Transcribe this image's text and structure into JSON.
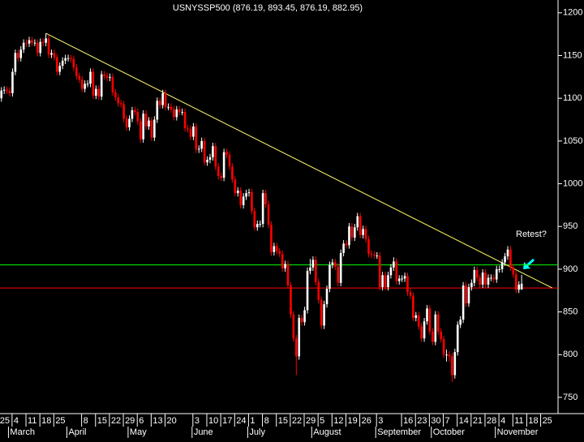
{
  "chart_data": {
    "type": "candlestick",
    "title": "USNYSSP500 (876.19, 893.45, 876.19, 882.95)",
    "annotation": "Retest?",
    "annotation_color": "#ff00ff",
    "up_color": "#ffffff",
    "down_color": "#ff0000",
    "ylim": [
      731,
      1215
    ],
    "yticks": [
      750,
      800,
      850,
      900,
      950,
      1000,
      1050,
      1100,
      1150,
      1200
    ],
    "hlines": [
      {
        "value": 905,
        "color": "#00ff00"
      },
      {
        "value": 878,
        "color": "#ff0000"
      }
    ],
    "trendline": {
      "x": [
        16,
        198
      ],
      "y": [
        1176,
        878
      ],
      "color": "#ffff66"
    },
    "categories": [
      "25",
      null,
      null,
      null,
      null,
      "4",
      null,
      null,
      null,
      null,
      "11",
      null,
      null,
      null,
      null,
      "18",
      null,
      null,
      null,
      null,
      "25",
      null,
      null,
      null,
      null,
      null,
      null,
      null,
      null,
      null,
      "8",
      null,
      null,
      null,
      null,
      "15",
      null,
      null,
      null,
      null,
      "22",
      null,
      null,
      null,
      null,
      "29",
      null,
      null,
      null,
      null,
      "6",
      null,
      null,
      null,
      null,
      "13",
      null,
      null,
      null,
      null,
      "20",
      null,
      null,
      null,
      null,
      null,
      null,
      null,
      null,
      null,
      "3",
      null,
      null,
      null,
      null,
      "10",
      null,
      null,
      null,
      null,
      "17",
      null,
      null,
      null,
      null,
      "24",
      null,
      null,
      null,
      null,
      "1",
      null,
      null,
      null,
      null,
      "8",
      null,
      null,
      null,
      null,
      "15",
      null,
      null,
      null,
      null,
      "22",
      null,
      null,
      null,
      null,
      "29",
      null,
      null,
      null,
      null,
      "5",
      null,
      null,
      null,
      null,
      "12",
      null,
      null,
      null,
      null,
      "19",
      null,
      null,
      null,
      null,
      "26",
      null,
      null,
      null,
      null,
      null,
      "3",
      null,
      null,
      null,
      null,
      null,
      null,
      null,
      null,
      "16",
      null,
      null,
      null,
      null,
      "23",
      null,
      null,
      null,
      null,
      "30",
      null,
      null,
      null,
      null,
      "7",
      null,
      null,
      null,
      null,
      "14",
      null,
      null,
      null,
      null,
      "21",
      null,
      null,
      null,
      null,
      "28",
      null,
      null,
      null,
      null,
      "4",
      null,
      null,
      null,
      null,
      "11",
      null,
      null,
      null,
      null,
      "18",
      null,
      null,
      null,
      null,
      "25",
      null,
      null,
      null,
      null
    ],
    "months": [
      null,
      null,
      null,
      null,
      "March",
      null,
      null,
      null,
      null,
      null,
      null,
      null,
      null,
      null,
      null,
      null,
      null,
      null,
      null,
      null,
      null,
      null,
      null,
      null,
      null,
      "April",
      null,
      null,
      null,
      null,
      null,
      null,
      null,
      null,
      null,
      null,
      null,
      null,
      null,
      null,
      null,
      null,
      null,
      null,
      null,
      null,
      null,
      "May",
      null,
      null,
      null,
      null,
      null,
      null,
      null,
      null,
      null,
      null,
      null,
      null,
      null,
      null,
      null,
      null,
      null,
      null,
      null,
      null,
      null,
      null,
      "June",
      null,
      null,
      null,
      null,
      null,
      null,
      null,
      null,
      null,
      null,
      null,
      null,
      null,
      null,
      null,
      null,
      null,
      null,
      null,
      "July",
      null,
      null,
      null,
      null,
      null,
      null,
      null,
      null,
      null,
      null,
      null,
      null,
      null,
      null,
      null,
      null,
      null,
      null,
      null,
      null,
      null,
      null,
      "August",
      null,
      null,
      null,
      null,
      null,
      null,
      null,
      null,
      null,
      null,
      null,
      null,
      null,
      null,
      null,
      null,
      null,
      null,
      null,
      null,
      null,
      null,
      "September",
      null,
      null,
      null,
      null,
      null,
      null,
      null,
      null,
      null,
      null,
      null,
      null,
      null,
      null,
      null,
      null,
      null,
      null,
      null,
      "October",
      null,
      null,
      null,
      null,
      null,
      null,
      null,
      null,
      null,
      null,
      null,
      null,
      null,
      null,
      null,
      null,
      null,
      null,
      null,
      null,
      null,
      null,
      "November",
      null,
      null,
      null,
      null,
      null,
      null,
      null,
      null,
      null,
      null,
      null,
      null,
      null,
      null,
      null,
      null,
      null,
      null,
      null,
      null
    ],
    "open": [
      1100,
      1109,
      1110,
      1109,
      1106,
      1131,
      1153,
      1147,
      1157,
      1165,
      1164,
      1168,
      1165,
      1165,
      1153,
      1166,
      1165,
      1170,
      1151,
      1153,
      1148,
      1131,
      1138,
      1144,
      1147,
      1147,
      1146,
      1136,
      1126,
      1122,
      1111,
      1117,
      1117,
      1131,
      1103,
      1111,
      1102,
      1128,
      1126,
      1124,
      1125,
      1107,
      1101,
      1094,
      1093,
      1076,
      1066,
      1076,
      1086,
      1084,
      1073,
      1052,
      1082,
      1067,
      1074,
      1054,
      1075,
      1097,
      1092,
      1106,
      1090,
      1090,
      1087,
      1078,
      1087,
      1084,
      1084,
      1065,
      1064,
      1055,
      1067,
      1040,
      1041,
      1050,
      1025,
      1028,
      1031,
      1044,
      1020,
      1009,
      1007,
      1037,
      1034,
      1020,
      1005,
      989,
      992,
      975,
      985,
      989,
      990,
      968,
      949,
      953,
      953,
      989,
      976,
      952,
      920,
      927,
      921,
      918,
      901,
      906,
      881,
      847,
      819,
      798,
      843,
      838,
      852,
      898,
      902,
      911,
      885,
      864,
      834,
      859,
      877,
      905,
      908,
      903,
      884,
      919,
      930,
      928,
      950,
      937,
      949,
      962,
      940,
      947,
      935,
      918,
      917,
      916,
      916,
      879,
      893,
      879,
      893,
      902,
      909,
      886,
      889,
      889,
      892,
      873,
      869,
      843,
      846,
      833,
      819,
      839,
      854,
      827,
      815,
      847,
      827,
      818,
      800,
      800,
      798,
      776,
      803,
      835,
      841,
      881,
      860,
      879,
      884,
      899,
      890,
      882,
      896,
      882,
      890,
      890,
      888,
      900,
      900,
      908,
      915,
      923,
      902,
      894,
      876,
      876.19,
      null,
      null,
      null,
      null,
      null,
      null,
      null,
      null,
      null,
      null,
      null,
      null
    ],
    "high": [
      1113,
      1114,
      1114,
      1113,
      1135,
      1157,
      1157,
      1161,
      1169,
      1169,
      1172,
      1172,
      1169,
      1169,
      1170,
      1170,
      1176,
      1174,
      1157,
      1157,
      1152,
      1142,
      1148,
      1151,
      1151,
      1151,
      1150,
      1140,
      1130,
      1126,
      1121,
      1121,
      1135,
      1135,
      1115,
      1115,
      1132,
      1132,
      1130,
      1129,
      1129,
      1111,
      1105,
      1098,
      1097,
      1080,
      1080,
      1090,
      1090,
      1088,
      1077,
      1086,
      1086,
      1078,
      1078,
      1079,
      1101,
      1101,
      1110,
      1110,
      1094,
      1094,
      1091,
      1091,
      1091,
      1088,
      1088,
      1069,
      1068,
      1071,
      1071,
      1045,
      1054,
      1054,
      1032,
      1035,
      1048,
      1048,
      1024,
      1013,
      1041,
      1041,
      1038,
      1024,
      1009,
      996,
      996,
      989,
      993,
      994,
      994,
      972,
      957,
      957,
      993,
      993,
      980,
      956,
      931,
      931,
      925,
      922,
      910,
      910,
      885,
      851,
      823,
      847,
      847,
      856,
      902,
      912,
      915,
      915,
      889,
      868,
      863,
      881,
      909,
      912,
      912,
      907,
      923,
      934,
      934,
      954,
      954,
      953,
      966,
      966,
      951,
      951,
      939,
      922,
      921,
      920,
      920,
      897,
      897,
      897,
      906,
      914,
      913,
      893,
      893,
      896,
      896,
      877,
      873,
      850,
      850,
      837,
      843,
      858,
      858,
      831,
      851,
      851,
      831,
      822,
      806,
      804,
      802,
      807,
      839,
      845,
      885,
      885,
      883,
      888,
      903,
      903,
      894,
      900,
      900,
      894,
      894,
      894,
      904,
      904,
      912,
      919,
      927,
      927,
      906,
      898,
      886,
      893.45,
      null,
      null,
      null,
      null,
      null,
      null,
      null,
      null,
      null,
      null,
      null,
      null
    ],
    "low": [
      1096,
      1105,
      1105,
      1102,
      1102,
      1127,
      1143,
      1143,
      1153,
      1160,
      1160,
      1161,
      1161,
      1149,
      1149,
      1161,
      1161,
      1147,
      1147,
      1144,
      1127,
      1127,
      1134,
      1140,
      1143,
      1142,
      1132,
      1122,
      1118,
      1107,
      1107,
      1113,
      1113,
      1099,
      1099,
      1098,
      1098,
      1122,
      1120,
      1120,
      1103,
      1097,
      1090,
      1089,
      1072,
      1062,
      1062,
      1072,
      1080,
      1069,
      1048,
      1048,
      1063,
      1063,
      1050,
      1050,
      1071,
      1088,
      1088,
      1086,
      1086,
      1083,
      1074,
      1074,
      1080,
      1080,
      1061,
      1060,
      1051,
      1051,
      1036,
      1036,
      1037,
      1021,
      1021,
      1024,
      1027,
      1016,
      1005,
      1003,
      1003,
      1030,
      1016,
      1001,
      985,
      985,
      971,
      971,
      981,
      985,
      964,
      945,
      945,
      949,
      949,
      972,
      948,
      916,
      916,
      917,
      914,
      897,
      897,
      877,
      843,
      815,
      776,
      794,
      834,
      834,
      848,
      894,
      898,
      881,
      860,
      830,
      830,
      855,
      873,
      901,
      899,
      880,
      880,
      915,
      924,
      924,
      933,
      933,
      945,
      936,
      936,
      931,
      914,
      913,
      912,
      912,
      875,
      875,
      875,
      875,
      889,
      898,
      882,
      882,
      885,
      885,
      869,
      865,
      839,
      839,
      829,
      815,
      815,
      835,
      823,
      811,
      811,
      823,
      814,
      796,
      792,
      792,
      768,
      772,
      799,
      831,
      837,
      856,
      856,
      875,
      880,
      886,
      878,
      878,
      878,
      878,
      886,
      884,
      884,
      896,
      896,
      904,
      911,
      898,
      890,
      872,
      872,
      876.19,
      null,
      null,
      null,
      null,
      null,
      null,
      null,
      null,
      null,
      null,
      null,
      null
    ],
    "close": [
      1109,
      1110,
      1109,
      1106,
      1131,
      1153,
      1147,
      1157,
      1165,
      1164,
      1168,
      1165,
      1165,
      1153,
      1166,
      1165,
      1170,
      1151,
      1153,
      1148,
      1131,
      1138,
      1144,
      1147,
      1147,
      1146,
      1136,
      1126,
      1122,
      1111,
      1117,
      1117,
      1131,
      1103,
      1111,
      1102,
      1128,
      1126,
      1124,
      1125,
      1107,
      1101,
      1094,
      1093,
      1076,
      1066,
      1076,
      1086,
      1084,
      1073,
      1052,
      1082,
      1067,
      1074,
      1054,
      1075,
      1097,
      1092,
      1106,
      1090,
      1090,
      1087,
      1078,
      1087,
      1084,
      1084,
      1065,
      1064,
      1055,
      1067,
      1040,
      1041,
      1050,
      1025,
      1028,
      1031,
      1044,
      1020,
      1009,
      1007,
      1037,
      1034,
      1020,
      1005,
      989,
      992,
      975,
      985,
      989,
      990,
      968,
      949,
      953,
      953,
      989,
      976,
      952,
      920,
      927,
      921,
      918,
      901,
      906,
      881,
      847,
      819,
      798,
      843,
      838,
      852,
      898,
      902,
      911,
      885,
      864,
      834,
      859,
      877,
      905,
      908,
      903,
      884,
      919,
      930,
      928,
      950,
      937,
      949,
      962,
      940,
      947,
      935,
      918,
      917,
      916,
      916,
      879,
      893,
      879,
      893,
      902,
      909,
      886,
      889,
      889,
      892,
      873,
      869,
      843,
      846,
      833,
      819,
      839,
      854,
      827,
      815,
      847,
      827,
      818,
      800,
      800,
      798,
      776,
      803,
      835,
      841,
      881,
      860,
      879,
      884,
      899,
      890,
      882,
      896,
      882,
      890,
      890,
      888,
      900,
      900,
      908,
      915,
      923,
      902,
      894,
      876,
      882,
      882.95,
      null,
      null,
      null,
      null,
      null,
      null,
      null,
      null,
      null,
      null,
      null,
      null
    ]
  }
}
